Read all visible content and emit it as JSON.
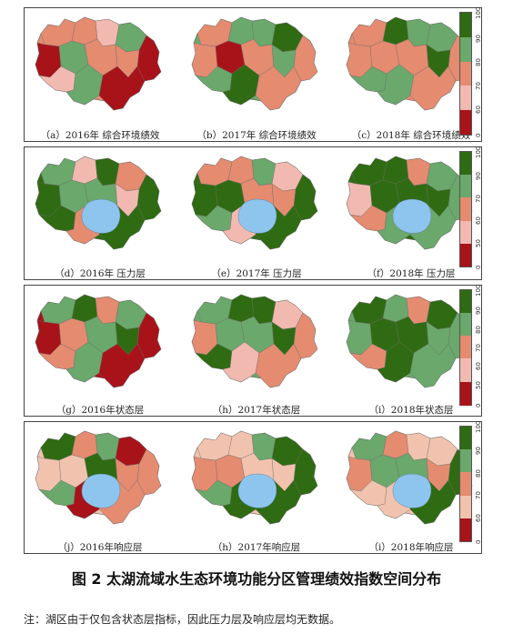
{
  "panels": [
    {
      "legend_ticks": [
        "100",
        "90",
        "80",
        "70",
        "60",
        "0"
      ],
      "maps": [
        {
          "caption": "（a）2016年 综合环境绩效",
          "lake_shown": false,
          "water_value": null
        },
        {
          "caption": "（b）2017年 综合环境绩效",
          "lake_shown": false,
          "water_value": null
        },
        {
          "caption": "（c）2018年 综合环境绩效",
          "lake_shown": false,
          "water_value": null
        }
      ]
    },
    {
      "legend_ticks": [
        "100",
        "90",
        "70",
        "60",
        "50",
        "0"
      ],
      "maps": [
        {
          "caption": "（d）2016年 压力层",
          "lake_shown": true,
          "water_value": null
        },
        {
          "caption": "（e）2017年 压力层",
          "lake_shown": true,
          "water_value": null
        },
        {
          "caption": "（f）2018年 压力层",
          "lake_shown": true,
          "water_value": null
        }
      ]
    },
    {
      "legend_ticks": [
        "100",
        "90",
        "80",
        "70",
        "60",
        "50",
        "0"
      ],
      "maps": [
        {
          "caption": "（g）2016年状态层",
          "lake_shown": false,
          "water_value": null
        },
        {
          "caption": "（h）2017年状态层",
          "lake_shown": false,
          "water_value": null
        },
        {
          "caption": "（i）2018年状态层",
          "lake_shown": false,
          "water_value": null
        }
      ]
    },
    {
      "legend_ticks": [
        "100",
        "90",
        "80",
        "70",
        "60",
        "0"
      ],
      "maps": [
        {
          "caption": "（j）2016年响应层",
          "lake_shown": true,
          "water_value": null
        },
        {
          "caption": "（h）2017年响应层",
          "lake_shown": true,
          "water_value": null
        },
        {
          "caption": "（i）2018年响应层",
          "lake_shown": true,
          "water_value": null
        }
      ]
    }
  ],
  "figure_title": "图 2  太湖流域水生态环境功能分区管理绩效指数空间分布",
  "footnote": "注：湖区由于仅包含状态层指标，因此压力层及响应层均无数据。",
  "colors": {
    "dark_green": "#2f6b12",
    "mid_green": "#6aa86b",
    "salmon": "#e48b70",
    "light_pink": "#f2b9b0",
    "dark_red": "#a8131a",
    "light_salmon": "#f1c3ae",
    "lake_blue": "#8ec5ef",
    "border": "#5a5a5a"
  }
}
